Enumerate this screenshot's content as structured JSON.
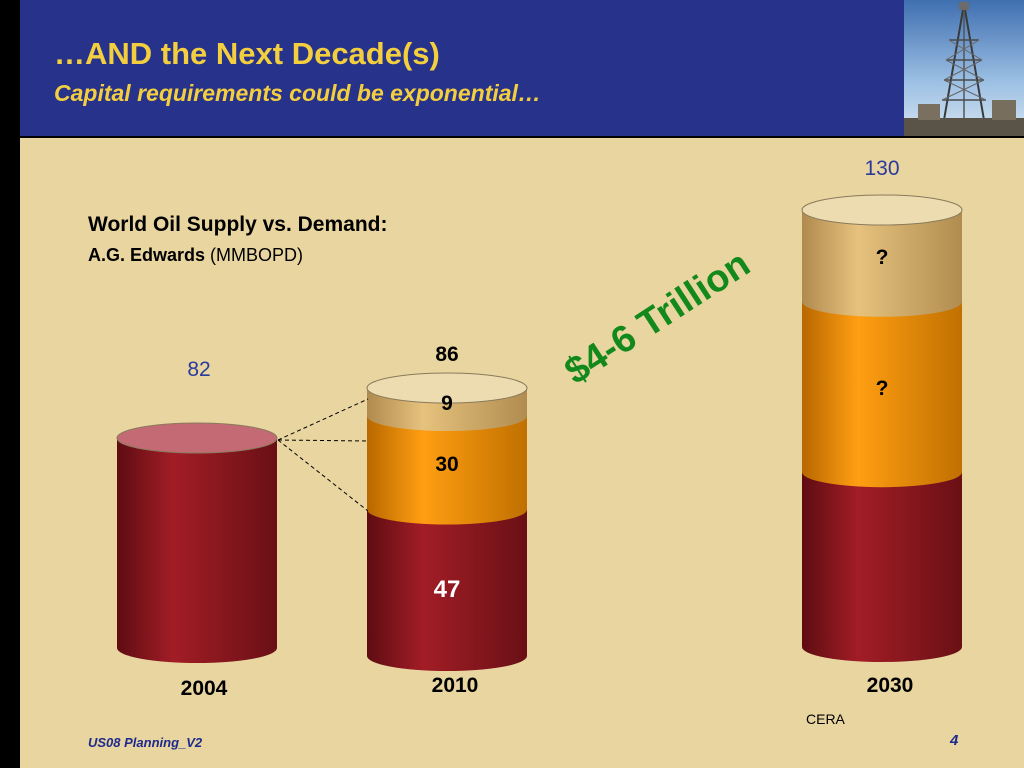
{
  "slide": {
    "title": "…AND the Next Decade(s)",
    "subtitle": "Capital requirements could be exponential…",
    "footer": "US08 Planning_V2",
    "page_number": "4"
  },
  "chart_data": {
    "type": "bar",
    "title": "World Oil Supply vs. Demand:",
    "source_label": "A.G.  Edwards",
    "unit_label": "(MMBOPD)",
    "categories": [
      "2004",
      "2010",
      "2030"
    ],
    "series": [
      {
        "values": [
          82,
          47,
          null
        ],
        "labels": [
          "",
          "47",
          ""
        ],
        "color": "#9c1c24"
      },
      {
        "values": [
          0,
          30,
          null
        ],
        "labels": [
          "",
          "30",
          "?"
        ],
        "color": "#f39a12"
      },
      {
        "values": [
          0,
          9,
          null
        ],
        "labels": [
          "",
          "9",
          "?"
        ],
        "color": "#ddb46c"
      }
    ],
    "totals": [
      "82",
      "86",
      "130"
    ],
    "totals_values": [
      82,
      86,
      130
    ],
    "annotations": {
      "investment": "$4-6 Trillion",
      "source": "CERA"
    },
    "colors": {
      "base": "#9c1c24",
      "middle": "#f39a12",
      "top": "#ddb46c",
      "total_label_blue": "#2b3a9c",
      "investment_green": "#13891c"
    }
  }
}
